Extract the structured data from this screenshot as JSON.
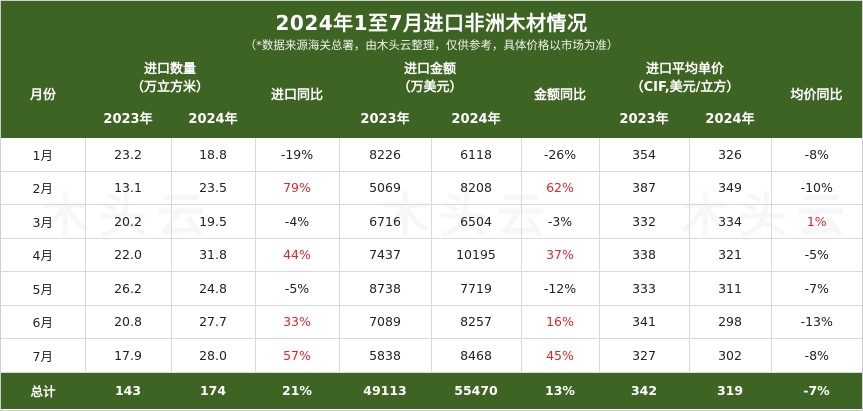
{
  "title": "2024年1至7月进口非洲木材情况",
  "subtitle": "（*数据来源海关总署，由木头云整理，仅供参考，具体价格以市场为准）",
  "headers": {
    "month": "月份",
    "volume_l1": "进口数量",
    "volume_l2": "（万立方米）",
    "volume_yoy": "进口同比",
    "amount_l1": "进口金额",
    "amount_l2": "（万美元）",
    "amount_yoy": "金额同比",
    "price_l1": "进口平均单价",
    "price_l2": "（CIF,美元/立方）",
    "price_yoy": "均价同比",
    "y2023": "2023年",
    "y2024": "2024年"
  },
  "rows": [
    {
      "month": "1月",
      "v2023": "23.2",
      "v2024": "18.8",
      "vyoy": "-19%",
      "a2023": "8226",
      "a2024": "6118",
      "ayoy": "-26%",
      "p2023": "354",
      "p2024": "326",
      "pyoy": "-8%"
    },
    {
      "month": "2月",
      "v2023": "13.1",
      "v2024": "23.5",
      "vyoy": "79%",
      "a2023": "5069",
      "a2024": "8208",
      "ayoy": "62%",
      "p2023": "387",
      "p2024": "349",
      "pyoy": "-10%"
    },
    {
      "month": "3月",
      "v2023": "20.2",
      "v2024": "19.5",
      "vyoy": "-4%",
      "a2023": "6716",
      "a2024": "6504",
      "ayoy": "-3%",
      "p2023": "332",
      "p2024": "334",
      "pyoy": "1%"
    },
    {
      "month": "4月",
      "v2023": "22.0",
      "v2024": "31.8",
      "vyoy": "44%",
      "a2023": "7437",
      "a2024": "10195",
      "ayoy": "37%",
      "p2023": "338",
      "p2024": "321",
      "pyoy": "-5%"
    },
    {
      "month": "5月",
      "v2023": "26.2",
      "v2024": "24.8",
      "vyoy": "-5%",
      "a2023": "8738",
      "a2024": "7719",
      "ayoy": "-12%",
      "p2023": "333",
      "p2024": "311",
      "pyoy": "-7%"
    },
    {
      "month": "6月",
      "v2023": "20.8",
      "v2024": "27.7",
      "vyoy": "33%",
      "a2023": "7089",
      "a2024": "8257",
      "ayoy": "16%",
      "p2023": "341",
      "p2024": "298",
      "pyoy": "-13%"
    },
    {
      "month": "7月",
      "v2023": "17.9",
      "v2024": "28.0",
      "vyoy": "57%",
      "a2023": "5838",
      "a2024": "8468",
      "ayoy": "45%",
      "p2023": "327",
      "p2024": "302",
      "pyoy": "-8%"
    }
  ],
  "total": {
    "month": "总计",
    "v2023": "143",
    "v2024": "174",
    "vyoy": "21%",
    "a2023": "49113",
    "a2024": "55470",
    "ayoy": "13%",
    "p2023": "342",
    "p2024": "319",
    "pyoy": "-7%"
  },
  "colors": {
    "header_bg": "#3e6424",
    "positive_change": "#e0262b",
    "text": "#222222"
  },
  "watermark": "木头云"
}
